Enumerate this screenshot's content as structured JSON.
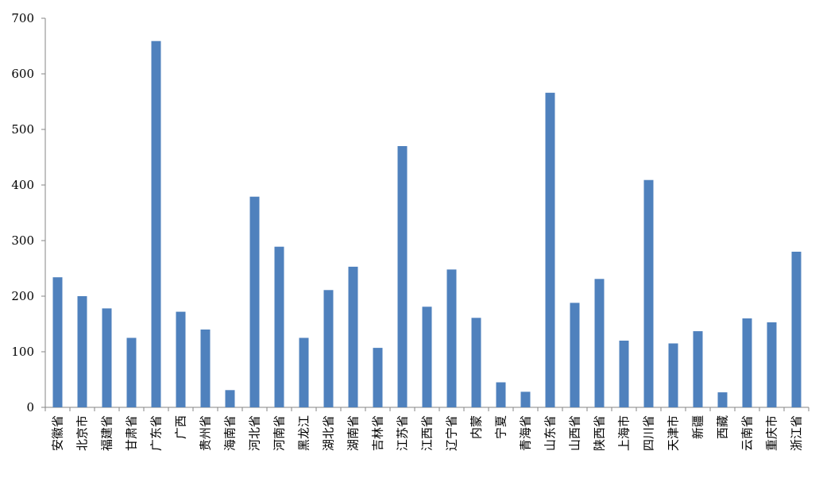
{
  "chart_data": {
    "type": "bar",
    "categories": [
      "安徽省",
      "北京市",
      "福建省",
      "甘肃省",
      "广东省",
      "广西",
      "贵州省",
      "海南省",
      "河北省",
      "河南省",
      "黑龙江",
      "湖北省",
      "湖南省",
      "吉林省",
      "江苏省",
      "江西省",
      "辽宁省",
      "内蒙",
      "宁夏",
      "青海省",
      "山东省",
      "山西省",
      "陕西省",
      "上海市",
      "四川省",
      "天津市",
      "新疆",
      "西藏",
      "云南省",
      "重庆市",
      "浙江省"
    ],
    "values": [
      234,
      200,
      178,
      125,
      659,
      172,
      140,
      31,
      379,
      289,
      125,
      211,
      253,
      107,
      470,
      181,
      248,
      161,
      45,
      28,
      566,
      188,
      231,
      120,
      409,
      115,
      137,
      27,
      160,
      153,
      280
    ],
    "yticks": [
      0,
      100,
      200,
      300,
      400,
      500,
      600,
      700
    ],
    "ylim": [
      0,
      700
    ],
    "grid": false,
    "legend": "none",
    "title": "",
    "xlabel": "",
    "ylabel": "",
    "bar_color": "#4F81BD"
  }
}
